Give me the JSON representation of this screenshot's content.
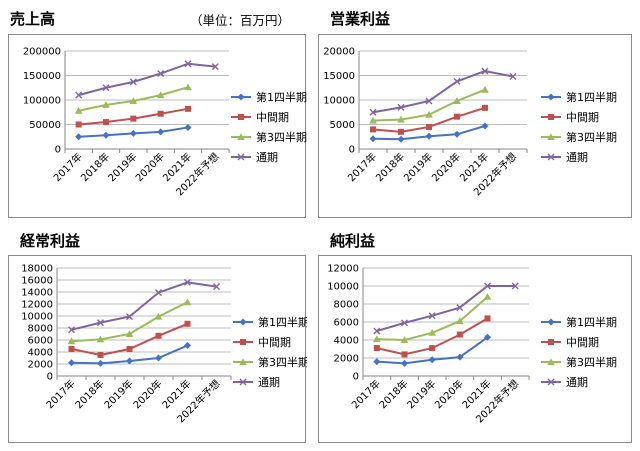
{
  "unit_label": "（単位：百万円）",
  "chart_data": [
    {
      "type": "line",
      "title": "売上高",
      "categories": [
        "2017年",
        "2018年",
        "2019年",
        "2020年",
        "2021年",
        "2022年予想"
      ],
      "ylim": [
        0,
        200000
      ],
      "yticks": [
        "0",
        "50000",
        "100000",
        "150000",
        "200000"
      ],
      "ytick_values": [
        0,
        50000,
        100000,
        150000,
        200000
      ],
      "series": [
        {
          "name": "第1四半期",
          "color": "#4472c4",
          "marker": "diamond",
          "values": [
            25000,
            28000,
            32000,
            35000,
            44000,
            null
          ]
        },
        {
          "name": "中間期",
          "color": "#c0504d",
          "marker": "square",
          "values": [
            50000,
            55000,
            62000,
            72000,
            82000,
            null
          ]
        },
        {
          "name": "第3四半期",
          "color": "#9bbb59",
          "marker": "triangle",
          "values": [
            78000,
            90000,
            98000,
            110000,
            126000,
            null
          ]
        },
        {
          "name": "通期",
          "color": "#8064a2",
          "marker": "x",
          "values": [
            110000,
            125000,
            137000,
            154000,
            174000,
            168000
          ]
        }
      ]
    },
    {
      "type": "line",
      "title": "営業利益",
      "categories": [
        "2017年",
        "2018年",
        "2019年",
        "2020年",
        "2021年",
        "2022年予想"
      ],
      "ylim": [
        0,
        20000
      ],
      "yticks": [
        "0",
        "5000",
        "10000",
        "15000",
        "20000"
      ],
      "ytick_values": [
        0,
        5000,
        10000,
        15000,
        20000
      ],
      "series": [
        {
          "name": "第1四半期",
          "color": "#4472c4",
          "marker": "diamond",
          "values": [
            2100,
            2000,
            2600,
            3000,
            4700,
            null
          ]
        },
        {
          "name": "中間期",
          "color": "#c0504d",
          "marker": "square",
          "values": [
            4000,
            3500,
            4500,
            6600,
            8400,
            null
          ]
        },
        {
          "name": "第3四半期",
          "color": "#9bbb59",
          "marker": "triangle",
          "values": [
            5800,
            6000,
            7000,
            9800,
            12100,
            null
          ]
        },
        {
          "name": "通期",
          "color": "#8064a2",
          "marker": "x",
          "values": [
            7500,
            8500,
            9800,
            13800,
            15900,
            14800
          ]
        }
      ]
    },
    {
      "type": "line",
      "title": "経常利益",
      "categories": [
        "2017年",
        "2018年",
        "2019年",
        "2020年",
        "2021年",
        "2022年予想"
      ],
      "ylim": [
        0,
        18000
      ],
      "yticks": [
        "0",
        "2000",
        "4000",
        "6000",
        "8000",
        "10000",
        "12000",
        "14000",
        "16000",
        "18000"
      ],
      "ytick_values": [
        0,
        2000,
        4000,
        6000,
        8000,
        10000,
        12000,
        14000,
        16000,
        18000
      ],
      "series": [
        {
          "name": "第1四半期",
          "color": "#4472c4",
          "marker": "diamond",
          "values": [
            2200,
            2100,
            2500,
            3000,
            5100,
            null
          ]
        },
        {
          "name": "中間期",
          "color": "#c0504d",
          "marker": "square",
          "values": [
            4500,
            3500,
            4500,
            6700,
            8700,
            null
          ]
        },
        {
          "name": "第3四半期",
          "color": "#9bbb59",
          "marker": "triangle",
          "values": [
            5800,
            6100,
            7000,
            9900,
            12300,
            null
          ]
        },
        {
          "name": "通期",
          "color": "#8064a2",
          "marker": "x",
          "values": [
            7700,
            8900,
            9900,
            13900,
            15600,
            14900
          ]
        }
      ]
    },
    {
      "type": "line",
      "title": "純利益",
      "categories": [
        "2017年",
        "2018年",
        "2019年",
        "2020年",
        "2021年",
        "2022年予想"
      ],
      "ylim": [
        0,
        12000
      ],
      "yticks": [
        "0",
        "2000",
        "4000",
        "6000",
        "8000",
        "10000",
        "12000"
      ],
      "ytick_values": [
        0,
        2000,
        4000,
        6000,
        8000,
        10000,
        12000
      ],
      "series": [
        {
          "name": "第1四半期",
          "color": "#4472c4",
          "marker": "diamond",
          "values": [
            1600,
            1400,
            1800,
            2100,
            4300,
            null
          ]
        },
        {
          "name": "中間期",
          "color": "#c0504d",
          "marker": "square",
          "values": [
            3100,
            2400,
            3100,
            4600,
            6400,
            null
          ]
        },
        {
          "name": "第3四半期",
          "color": "#9bbb59",
          "marker": "triangle",
          "values": [
            4100,
            4000,
            4800,
            6100,
            8800,
            null
          ]
        },
        {
          "name": "通期",
          "color": "#8064a2",
          "marker": "x",
          "values": [
            5000,
            5900,
            6700,
            7600,
            10000,
            10000
          ]
        }
      ]
    }
  ]
}
